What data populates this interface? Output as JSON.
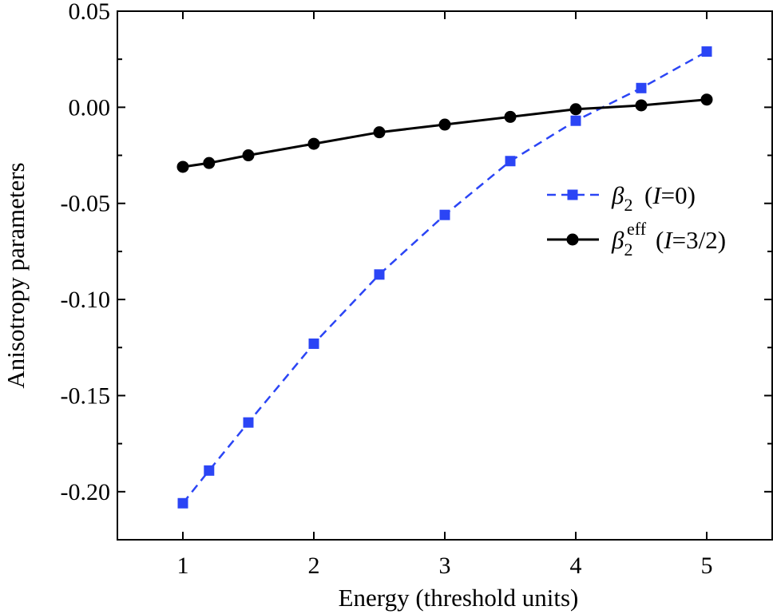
{
  "chart_data": {
    "type": "line",
    "title": "",
    "xlabel": "Energy (threshold units)",
    "ylabel": "Anisotropy parameters",
    "xlim": [
      0.5,
      5.5
    ],
    "ylim": [
      -0.225,
      0.05
    ],
    "x_ticks": [
      1,
      2,
      3,
      4,
      5
    ],
    "x_tick_labels": [
      "1",
      "2",
      "3",
      "4",
      "5"
    ],
    "y_ticks": [
      0.05,
      0.0,
      -0.05,
      -0.1,
      -0.15,
      -0.2
    ],
    "y_tick_labels": [
      "0.05",
      "0.00",
      "-0.05",
      "-0.10",
      "-0.15",
      "-0.20"
    ],
    "grid": false,
    "legend_position": "right-center",
    "series": [
      {
        "legend": {
          "symbol": "β",
          "subscript": "2",
          "superscript": "",
          "label_pre": "(",
          "label_italic": "I",
          "label_post": "=0)"
        },
        "color": "#2b45f5",
        "marker": "square",
        "line_style": "dashed",
        "x": [
          1,
          1.2,
          1.5,
          2,
          2.5,
          3,
          3.5,
          4,
          4.5,
          5
        ],
        "y": [
          -0.206,
          -0.189,
          -0.164,
          -0.123,
          -0.087,
          -0.056,
          -0.028,
          -0.007,
          0.01,
          0.029
        ]
      },
      {
        "legend": {
          "symbol": "β",
          "subscript": "2",
          "superscript": "eff",
          "label_pre": "(",
          "label_italic": "I",
          "label_post": "=3/2)"
        },
        "color": "#000000",
        "marker": "circle",
        "line_style": "solid",
        "x": [
          1,
          1.2,
          1.5,
          2,
          2.5,
          3,
          3.5,
          4,
          4.5,
          5
        ],
        "y": [
          -0.031,
          -0.029,
          -0.025,
          -0.019,
          -0.013,
          -0.009,
          -0.005,
          -0.001,
          0.001,
          0.004
        ]
      }
    ]
  }
}
